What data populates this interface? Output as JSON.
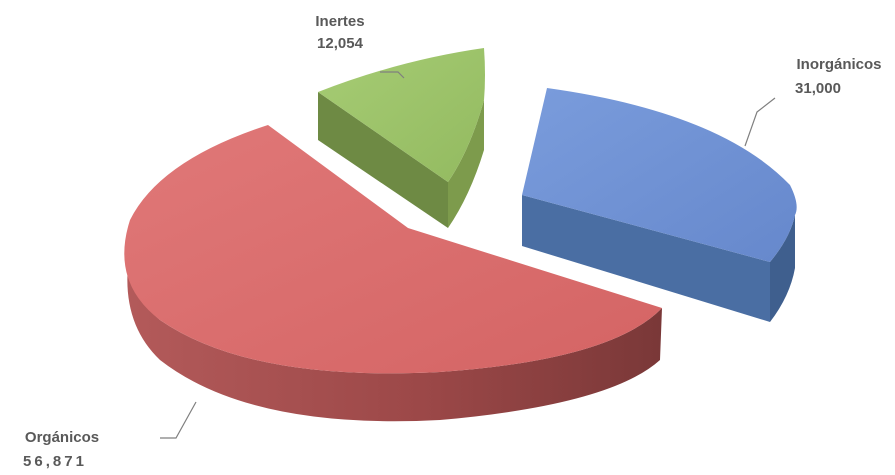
{
  "chart_data": {
    "type": "pie",
    "variant": "3d-exploded",
    "title": "",
    "categories": [
      "Orgánicos",
      "Inorgánicos",
      "Inertes"
    ],
    "values": [
      56871,
      31000,
      12054
    ],
    "value_labels": [
      "56,871",
      "31,000",
      "12,054"
    ],
    "colors": {
      "Orgánicos": "#d96b6b",
      "Inorgánicos": "#6f93d6",
      "Inertes": "#9dc26a"
    },
    "legend": "none"
  }
}
